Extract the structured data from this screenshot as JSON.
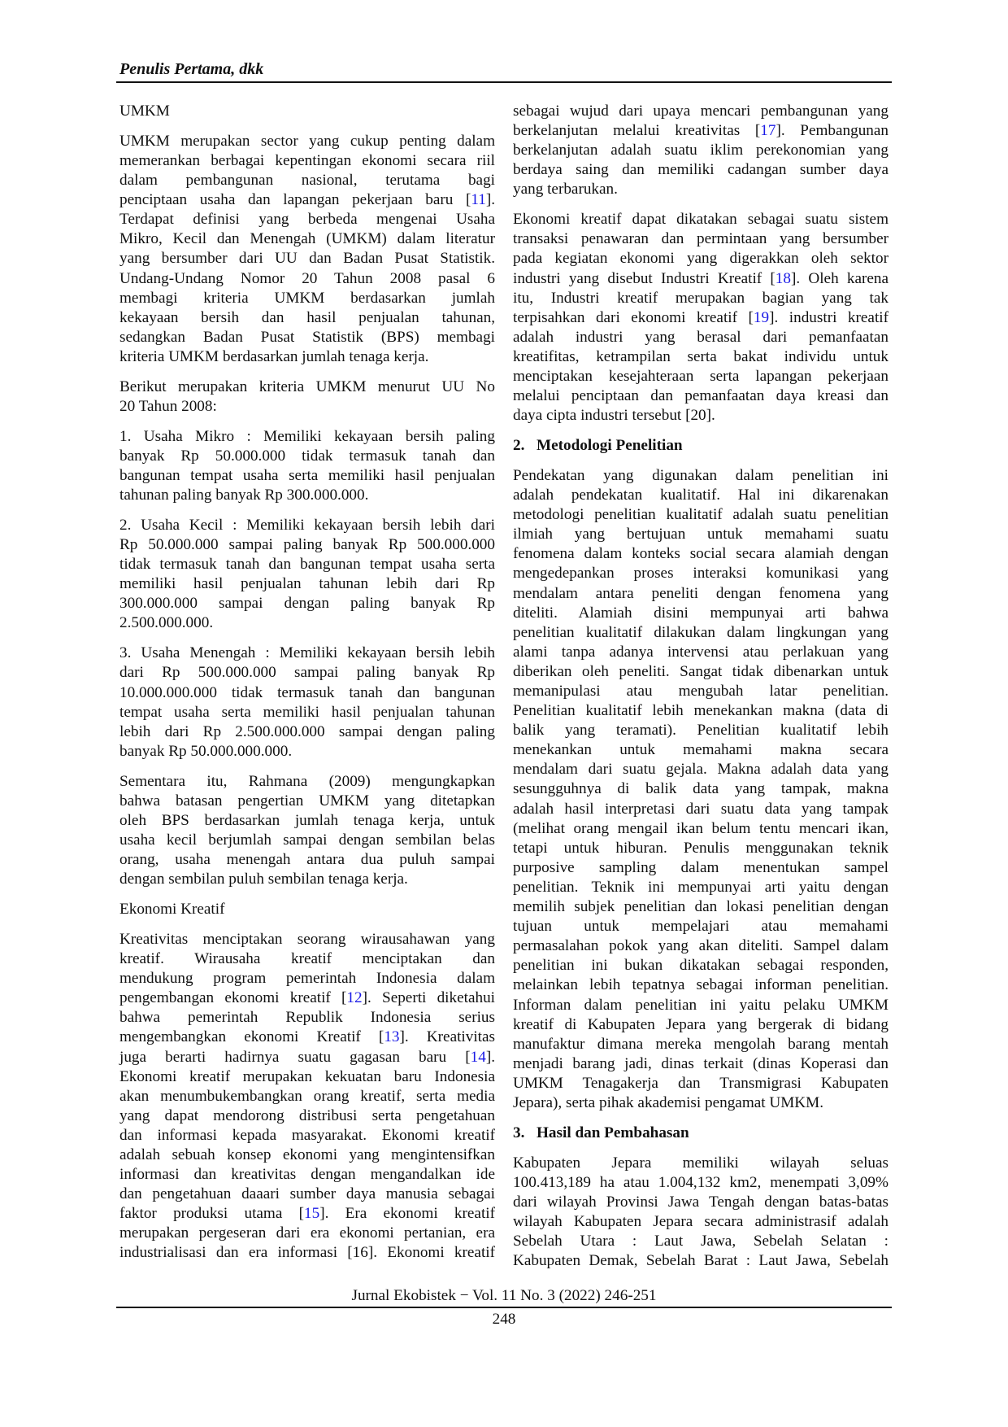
{
  "header": {
    "running_head": "Penulis Pertama, dkk"
  },
  "left_column": [
    {
      "type": "heading",
      "text": "UMKM"
    },
    {
      "type": "para",
      "lines": [
        "UMKM merupakan sector yang cukup penting dalam",
        "memerankan berbagai kepentingan ekonomi secara riil",
        "dalam pembangunan nasional, terutama bagi",
        "penciptaan usaha dan lapangan pekerjaan baru [11].",
        "Terdapat definisi yang berbeda mengenai Usaha",
        "Mikro, Kecil dan Menengah (UMKM) dalam literatur",
        "yang bersumber dari UU dan Badan Pusat Statistik.",
        "Undang-Undang Nomor 20 Tahun 2008 pasal 6",
        "membagi kriteria UMKM berdasarkan jumlah",
        "kekayaan bersih dan hasil penjualan tahunan,",
        "sedangkan Badan Pusat Statistik (BPS) membagi",
        "kriteria UMKM berdasarkan jumlah tenaga kerja."
      ]
    },
    {
      "type": "para",
      "lines": [
        "Berikut merupakan kriteria UMKM menurut UU No",
        "20 Tahun 2008:"
      ]
    },
    {
      "type": "para",
      "lines": [
        "1. Usaha Mikro : Memiliki kekayaan bersih paling",
        "banyak Rp 50.000.000 tidak termasuk tanah dan",
        "bangunan tempat usaha serta memiliki hasil penjualan",
        "tahunan paling banyak Rp 300.000.000."
      ]
    },
    {
      "type": "para",
      "lines": [
        "2. Usaha Kecil : Memiliki kekayaan bersih lebih dari",
        "Rp 50.000.000 sampai paling banyak Rp 500.000.000",
        "tidak termasuk tanah dan bangunan tempat usaha serta",
        "memiliki hasil penjualan tahunan lebih dari Rp",
        "300.000.000 sampai dengan paling banyak Rp",
        "2.500.000.000."
      ]
    },
    {
      "type": "para",
      "lines": [
        "3. Usaha Menengah : Memiliki kekayaan bersih lebih",
        "dari Rp 500.000.000 sampai paling banyak Rp",
        "10.000.000.000 tidak termasuk tanah dan bangunan",
        "tempat usaha serta memiliki hasil penjualan tahunan",
        "lebih dari Rp 2.500.000.000 sampai dengan paling",
        "banyak Rp 50.000.000.000."
      ]
    },
    {
      "type": "para",
      "lines": [
        "Sementara itu, Rahmana (2009) mengungkapkan",
        "bahwa batasan pengertian UMKM yang ditetapkan",
        "oleh BPS berdasarkan jumlah tenaga kerja, untuk",
        "usaha kecil berjumlah sampai dengan sembilan belas",
        "orang, usaha menengah antara dua puluh sampai",
        "dengan sembilan puluh sembilan tenaga kerja."
      ]
    },
    {
      "type": "heading",
      "text": "Ekonomi Kreatif"
    },
    {
      "type": "para",
      "continues": true,
      "lines": [
        "Kreativitas menciptakan seorang wirausahawan yang",
        "kreatif. Wirausaha kreatif menciptakan dan",
        "mendukung program pemerintah Indonesia dalam",
        "pengembangan ekonomi kreatif [12]. Seperti diketahui",
        "bahwa pemerintah Republik Indonesia serius",
        "mengembangkan ekonomi Kreatif [13]. Kreativitas",
        "juga berarti hadirnya suatu gagasan baru [14].",
        "Ekonomi kreatif merupakan kekuatan baru Indonesia",
        "akan menumbukembangkan orang kreatif, serta media",
        "yang dapat mendorong distribusi serta pengetahuan",
        "dan informasi kepada masyarakat. Ekonomi kreatif",
        "adalah sebuah konsep ekonomi yang mengintensifkan",
        "informasi dan kreativitas dengan mengandalkan ide",
        "dan pengetahuan daaari sumber daya manusia sebagai",
        "faktor produksi utama [15]. Era ekonomi kreatif",
        "merupakan pergeseran dari era ekonomi pertanian, era",
        "industrialisasi dan era informasi [16]. Ekonomi kreatif"
      ]
    }
  ],
  "right_column": [
    {
      "type": "para",
      "lines": [
        "sebagai wujud dari upaya mencari pembangunan yang",
        "berkelanjutan melalui kreativitas [17]. Pembangunan",
        "berkelanjutan adalah suatu iklim perekonomian yang",
        "berdaya saing dan memiliki cadangan sumber daya",
        "yang terbarukan."
      ]
    },
    {
      "type": "para",
      "lines": [
        "Ekonomi kreatif dapat dikatakan sebagai suatu sistem",
        "transaksi penawaran dan permintaan yang bersumber",
        "pada kegiatan ekonomi yang digerakkan oleh sektor",
        "industri yang disebut Industri Kreatif [18]. Oleh karena",
        "itu, Industri kreatif merupakan bagian yang tak",
        "terpisahkan dari ekonomi kreatif [19]. industri kreatif",
        "adalah industri yang berasal dari pemanfaatan",
        "kreatifitas, ketrampilan serta bakat individu untuk",
        "menciptakan kesejahteraan serta lapangan pekerjaan",
        "melalui penciptaan dan pemanfaatan daya kreasi dan",
        "daya cipta industri tersebut [20]."
      ]
    },
    {
      "type": "numbered_heading",
      "number": "2.",
      "text": "Metodologi Penelitian"
    },
    {
      "type": "para",
      "lines": [
        "Pendekatan yang digunakan dalam penelitian ini",
        "adalah pendekatan kualitatif. Hal ini dikarenakan",
        "metodologi penelitian kualitatif adalah suatu penelitian",
        "ilmiah yang bertujuan untuk memahami suatu",
        "fenomena dalam konteks social secara alamiah dengan",
        "mengedepankan proses interaksi komunikasi yang",
        "mendalam antara peneliti dengan fenomena yang",
        "diteliti. Alamiah disini mempunyai arti bahwa",
        "penelitian kualitatif dilakukan dalam lingkungan yang",
        "alami tanpa adanya intervensi atau perlakuan yang",
        "diberikan oleh peneliti. Sangat tidak dibenarkan untuk",
        "memanipulasi atau mengubah latar penelitian.",
        "Penelitian kualitatif lebih menekankan makna (data di",
        "balik yang teramati). Penelitian kualitatif lebih",
        "menekankan untuk memahami makna secara",
        "mendalam dari suatu gejala. Makna adalah data yang",
        "sesungguhnya di balik data yang tampak, makna",
        "adalah hasil interpretasi dari suatu data yang tampak",
        "(melihat orang mengail ikan belum tentu mencari ikan,",
        "tetapi untuk hiburan. Penulis menggunakan teknik",
        "purposive sampling dalam menentukan sampel",
        "penelitian. Teknik ini mempunyai arti yaitu dengan",
        "memilih subjek penelitian dan lokasi penelitian dengan",
        "tujuan untuk mempelajari atau memahami",
        "permasalahan pokok yang akan diteliti. Sampel dalam",
        "penelitian ini bukan dikatakan sebagai responden,",
        "melainkan lebih tepatnya sebagai informan penelitian.",
        "Informan dalam penelitian ini yaitu pelaku UMKM",
        "kreatif di Kabupaten Jepara yang bergerak di bidang",
        "manufaktur dimana mereka mengolah barang mentah",
        "menjadi barang jadi, dinas terkait (dinas Koperasi dan",
        "UMKM Tenagakerja dan Transmigrasi Kabupaten",
        "Jepara), serta pihak akademisi pengamat UMKM."
      ]
    },
    {
      "type": "numbered_heading",
      "number": "3.",
      "text": "Hasil dan Pembahasan"
    },
    {
      "type": "para",
      "continues": true,
      "lines": [
        "Kabupaten Jepara memiliki wilayah seluas",
        "100.413,189 ha atau 1.004,132 km2, menempati 3,09%",
        "dari wilayah Provinsi Jawa Tengah dengan batas-batas",
        "wilayah Kabupaten Jepara secara administrasif adalah",
        "Sebelah Utara : Laut Jawa, Sebelah Selatan :",
        "Kabupaten Demak, Sebelah Barat : Laut Jawa, Sebelah"
      ]
    }
  ],
  "footer": {
    "journal": "Jurnal Ekobistek − Vol. 11 No. 3 (2022) 246-251",
    "page_number": "248"
  },
  "colors": {
    "citation": "#1a1ae6",
    "text": "#111111"
  }
}
